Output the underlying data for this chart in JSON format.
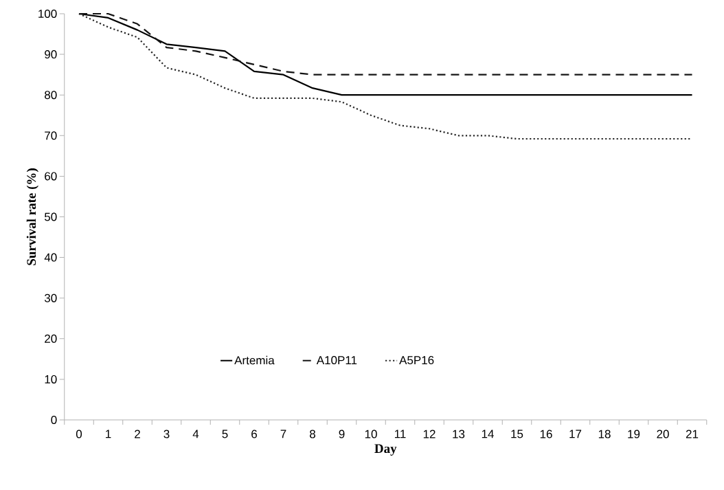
{
  "chart_data": {
    "type": "line",
    "xlabel": "Day",
    "ylabel": "Survival rate (%)",
    "categories": [
      "0",
      "1",
      "2",
      "3",
      "4",
      "5",
      "6",
      "7",
      "8",
      "9",
      "10",
      "11",
      "12",
      "13",
      "14",
      "15",
      "16",
      "17",
      "18",
      "19",
      "20",
      "21"
    ],
    "series": [
      {
        "name": "Artemia",
        "color": "#000000",
        "line_style": "solid",
        "values": [
          100,
          99,
          96,
          92.5,
          91.7,
          90.8,
          85.8,
          85,
          81.7,
          80,
          80,
          80,
          80,
          80,
          80,
          80,
          80,
          80,
          80,
          80,
          80,
          80
        ]
      },
      {
        "name": "A10P11",
        "color": "#141414",
        "line_style": "dashed",
        "values": [
          100,
          100,
          97.5,
          91.7,
          90.8,
          89.2,
          87.5,
          85.8,
          85,
          85,
          85,
          85,
          85,
          85,
          85,
          85,
          85,
          85,
          85,
          85,
          85,
          85
        ]
      },
      {
        "name": "A5P16",
        "color": "#262626",
        "line_style": "dotted",
        "values": [
          100,
          96.7,
          94.2,
          86.7,
          85,
          81.7,
          79.2,
          79.2,
          79.2,
          78.3,
          75,
          72.5,
          71.7,
          70,
          70,
          69.2,
          69.2,
          69.2,
          69.2,
          69.2,
          69.2,
          69.2
        ]
      }
    ],
    "ylim": [
      0,
      100
    ],
    "yticks": [
      0,
      10,
      20,
      30,
      40,
      50,
      60,
      70,
      80,
      90,
      100
    ],
    "grid": false,
    "legend": "bottom",
    "marker": "none"
  }
}
